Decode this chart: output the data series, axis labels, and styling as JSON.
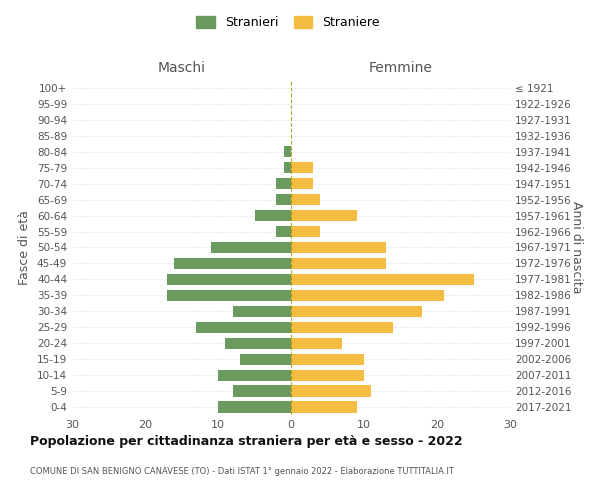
{
  "age_groups": [
    "100+",
    "95-99",
    "90-94",
    "85-89",
    "80-84",
    "75-79",
    "70-74",
    "65-69",
    "60-64",
    "55-59",
    "50-54",
    "45-49",
    "40-44",
    "35-39",
    "30-34",
    "25-29",
    "20-24",
    "15-19",
    "10-14",
    "5-9",
    "0-4"
  ],
  "birth_years": [
    "≤ 1921",
    "1922-1926",
    "1927-1931",
    "1932-1936",
    "1937-1941",
    "1942-1946",
    "1947-1951",
    "1952-1956",
    "1957-1961",
    "1962-1966",
    "1967-1971",
    "1972-1976",
    "1977-1981",
    "1982-1986",
    "1987-1991",
    "1992-1996",
    "1997-2001",
    "2002-2006",
    "2007-2011",
    "2012-2016",
    "2017-2021"
  ],
  "maschi": [
    0,
    0,
    0,
    0,
    1,
    1,
    2,
    2,
    5,
    2,
    11,
    16,
    17,
    17,
    8,
    13,
    9,
    7,
    10,
    8,
    10
  ],
  "femmine": [
    0,
    0,
    0,
    0,
    0,
    3,
    3,
    4,
    9,
    4,
    13,
    13,
    25,
    21,
    18,
    14,
    7,
    10,
    10,
    11,
    9
  ],
  "maschi_color": "#6a9a5f",
  "femmine_color": "#f5bc42",
  "title": "Popolazione per cittadinanza straniera per età e sesso - 2022",
  "subtitle": "COMUNE DI SAN BENIGNO CANAVESE (TO) - Dati ISTAT 1° gennaio 2022 - Elaborazione TUTTITALIA.IT",
  "xlabel_left": "Maschi",
  "xlabel_right": "Femmine",
  "ylabel_left": "Fasce di età",
  "ylabel_right": "Anni di nascita",
  "legend_maschi": "Stranieri",
  "legend_femmine": "Straniere",
  "xlim": 30,
  "background_color": "#ffffff",
  "grid_color": "#cccccc"
}
